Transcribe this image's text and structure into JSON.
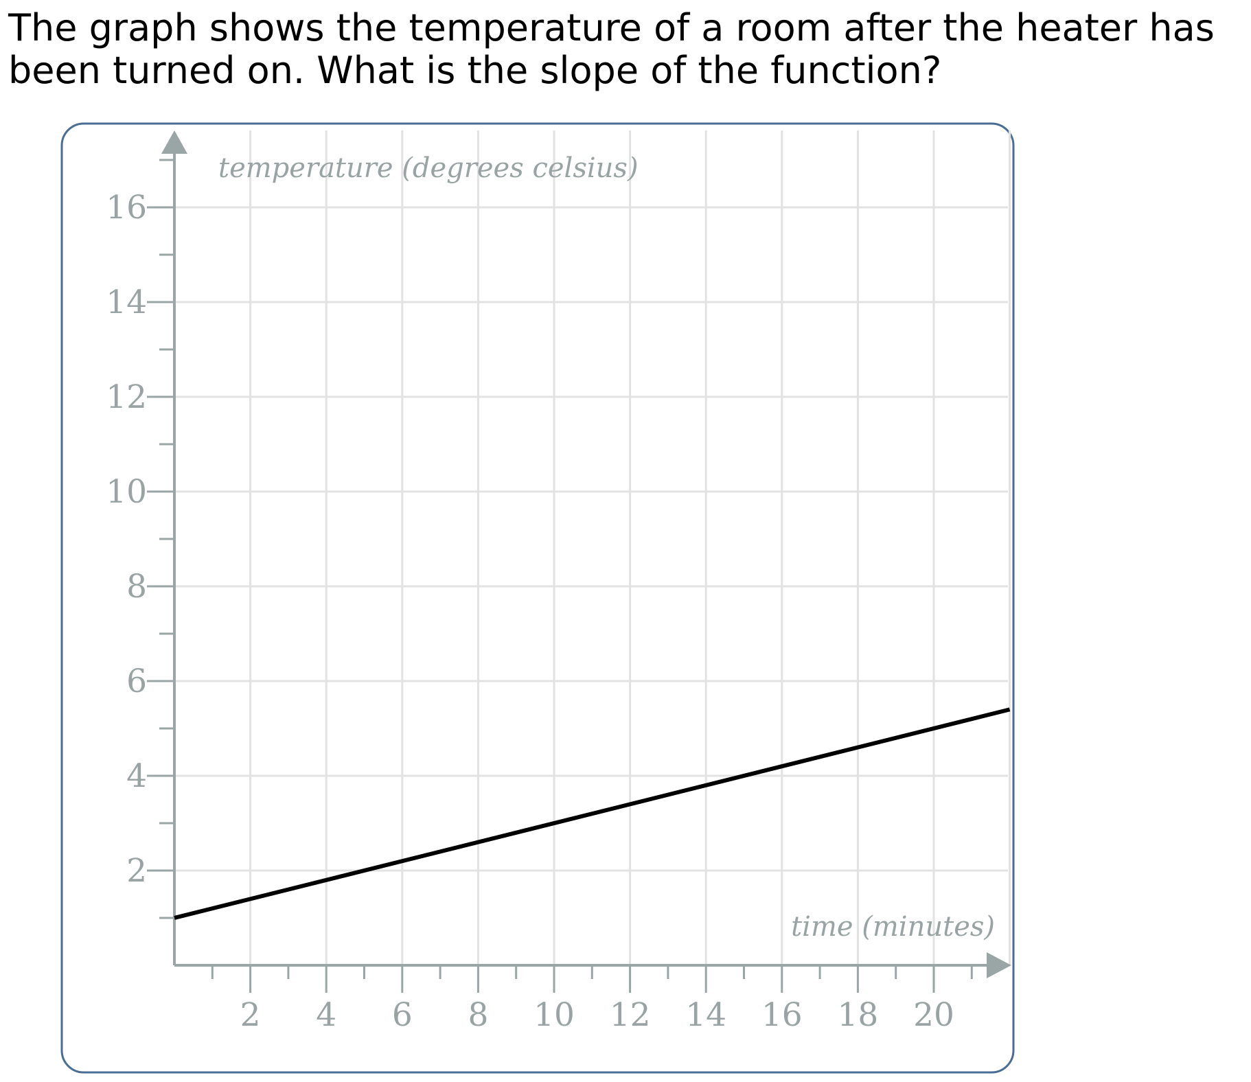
{
  "question": {
    "line1": "The graph shows the temperature of a room after the heater has",
    "line2": "been turned on. What is the slope of the function?"
  },
  "colors": {
    "frame": "#4a6d94",
    "grid": "#e2e2e2",
    "axis": "#9aa6a6",
    "text": "#9aa3a3",
    "line": "#000000"
  },
  "chart_data": {
    "type": "line",
    "ylabel": "temperature (degrees celsius)",
    "xlabel": "time (minutes)",
    "xlim": [
      0,
      22
    ],
    "ylim": [
      0,
      17.5
    ],
    "x_ticks": [
      2,
      4,
      6,
      8,
      10,
      12,
      14,
      16,
      18,
      20
    ],
    "y_ticks": [
      2,
      4,
      6,
      8,
      10,
      12,
      14,
      16
    ],
    "x_minor_step": 1,
    "y_minor_step": 1,
    "grid": true,
    "series": [
      {
        "x": [
          0,
          22
        ],
        "y": [
          1,
          5.4
        ]
      }
    ]
  }
}
